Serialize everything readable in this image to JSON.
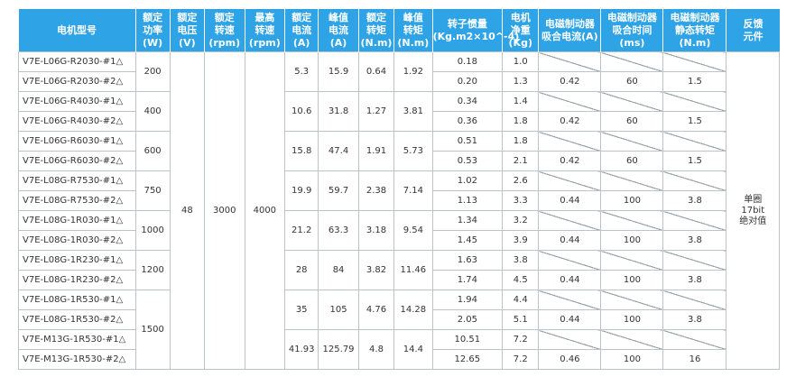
{
  "headers": [
    "电机型号",
    "额定\n功率\n(W)",
    "额定\n电压\n(V)",
    "额定\n转速\n(rpm)",
    "最高\n转速\n(rpm)",
    "额定\n电流\n(A)",
    "峰值\n电流\n(A)",
    "额定\n转矩\n(N.m)",
    "峰值\n转矩\n(N.m)",
    "转子惯量\n(Kg.m2×10^-4)",
    "电机\n净重\n(Kg)",
    "电磁制动器\n吸合电流(A)",
    "电磁制动器\n吸合时间(ms)",
    "电磁制动器\n静态转矩(N.m)",
    "反馈\n元件"
  ],
  "rated_voltage": "48",
  "rated_speed": "3000",
  "max_speed": "4000",
  "feedback": "单圈\n17bit\n绝对值",
  "groups": [
    {
      "power": "200",
      "current": "5.3",
      "peak_current": "15.9",
      "torque": "0.64",
      "peak_torque": "1.92",
      "rows": [
        {
          "model": "V7E-L06G-R2030-#1△",
          "inertia": "0.18",
          "weight": "1.0",
          "brake": false
        },
        {
          "model": "V7E-L06G-R2030-#2△",
          "inertia": "0.20",
          "weight": "1.3",
          "brake": true,
          "brake_current": "0.42",
          "brake_time": "60",
          "brake_torque": "1.5"
        }
      ]
    },
    {
      "power": "400",
      "current": "10.6",
      "peak_current": "31.8",
      "torque": "1.27",
      "peak_torque": "3.81",
      "rows": [
        {
          "model": "V7E-L06G-R4030-#1△",
          "inertia": "0.34",
          "weight": "1.4",
          "brake": false
        },
        {
          "model": "V7E-L06G-R4030-#2△",
          "inertia": "0.36",
          "weight": "1.8",
          "brake": true,
          "brake_current": "0.42",
          "brake_time": "60",
          "brake_torque": "1.5"
        }
      ]
    },
    {
      "power": "600",
      "current": "15.8",
      "peak_current": "47.4",
      "torque": "1.91",
      "peak_torque": "5.73",
      "rows": [
        {
          "model": "V7E-L06G-R6030-#1△",
          "inertia": "0.51",
          "weight": "1.8",
          "brake": false
        },
        {
          "model": "V7E-L06G-R6030-#2△",
          "inertia": "0.53",
          "weight": "2.1",
          "brake": true,
          "brake_current": "0.42",
          "brake_time": "60",
          "brake_torque": "1.5"
        }
      ]
    },
    {
      "power": "750",
      "current": "19.9",
      "peak_current": "59.7",
      "torque": "2.38",
      "peak_torque": "7.14",
      "rows": [
        {
          "model": "V7E-L08G-R7530-#1△",
          "inertia": "1.02",
          "weight": "2.6",
          "brake": false
        },
        {
          "model": "V7E-L08G-R7530-#2△",
          "inertia": "1.13",
          "weight": "3.3",
          "brake": true,
          "brake_current": "0.44",
          "brake_time": "100",
          "brake_torque": "3.8"
        }
      ]
    },
    {
      "power": "1000",
      "current": "21.2",
      "peak_current": "63.3",
      "torque": "3.18",
      "peak_torque": "9.54",
      "rows": [
        {
          "model": "V7E-L08G-1R030-#1△",
          "inertia": "1.34",
          "weight": "3.2",
          "brake": false
        },
        {
          "model": "V7E-L08G-1R030-#2△",
          "inertia": "1.45",
          "weight": "3.9",
          "brake": true,
          "brake_current": "0.44",
          "brake_time": "100",
          "brake_torque": "3.8"
        }
      ]
    },
    {
      "power": "1200",
      "current": "28",
      "peak_current": "84",
      "torque": "3.82",
      "peak_torque": "11.46",
      "rows": [
        {
          "model": "V7E-L08G-1R230-#1△",
          "inertia": "1.63",
          "weight": "3.8",
          "brake": false
        },
        {
          "model": "V7E-L08G-1R230-#2△",
          "inertia": "1.74",
          "weight": "4.5",
          "brake": true,
          "brake_current": "0.44",
          "brake_time": "100",
          "brake_torque": "3.8"
        }
      ]
    },
    {
      "power": "1500",
      "current": "35",
      "peak_current": "105",
      "torque": "4.76",
      "peak_torque": "14.28",
      "rows": [
        {
          "model": "V7E-L08G-1R530-#1△",
          "inertia": "1.94",
          "weight": "4.4",
          "brake": false
        },
        {
          "model": "V7E-L08G-1R530-#2△",
          "inertia": "2.05",
          "weight": "5.1",
          "brake": true,
          "brake_current": "0.44",
          "brake_time": "100",
          "brake_torque": "3.8"
        }
      ]
    },
    {
      "power": "",
      "current": "41.93",
      "peak_current": "125.79",
      "torque": "4.8",
      "peak_torque": "14.4",
      "rows": [
        {
          "model": "V7E-M13G-1R530-#1△",
          "inertia": "10.51",
          "weight": "7.2",
          "brake": false
        },
        {
          "model": "V7E-M13G-1R530-#2△",
          "inertia": "12.65",
          "weight": "7.2",
          "brake": true,
          "brake_current": "0.46",
          "brake_time": "100",
          "brake_torque": "16"
        }
      ]
    }
  ]
}
